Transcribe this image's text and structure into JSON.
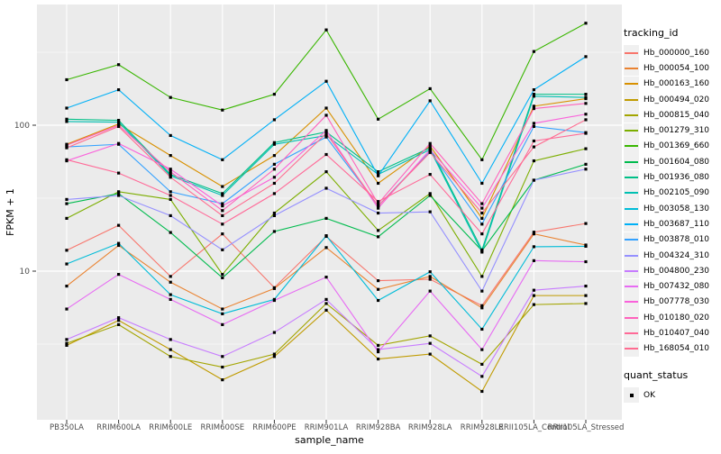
{
  "chart_data": {
    "type": "line",
    "title": "",
    "xlabel": "sample_name",
    "ylabel": "FPKM + 1",
    "y_scale": "log10",
    "y_ticks": [
      10,
      100
    ],
    "ylim": [
      1,
      590
    ],
    "grid": true,
    "panel_bg": "#EBEBEB",
    "gridline_color": "#FFFFFF",
    "tick_label_color": "#4D4D4D",
    "point_marker": "black-square",
    "categories": [
      "PB350LA",
      "RRIM600LA",
      "RRIM600LE",
      "RRIM600SE",
      "RRIM600PE",
      "RRIM901LA",
      "RRIM928BA",
      "RRIM928LA",
      "RRIM928LE",
      "RRII105LA_Control",
      "RRII105LA_Stressed"
    ],
    "series": [
      {
        "name": "Hb_000000_160",
        "color": "#F8766D",
        "values": [
          13.9,
          20.6,
          9.2,
          18,
          7.7,
          17.3,
          8.6,
          8.8,
          5.8,
          18.5,
          21.2
        ]
      },
      {
        "name": "Hb_000054_100",
        "color": "#EA8331",
        "values": [
          7.9,
          15,
          8.4,
          5.5,
          7.6,
          14.5,
          7.5,
          9.2,
          5.6,
          18,
          15.1
        ]
      },
      {
        "name": "Hb_000163_160",
        "color": "#D89000",
        "values": [
          74,
          102,
          62,
          38,
          62,
          131,
          40,
          72,
          23,
          135,
          152
        ]
      },
      {
        "name": "Hb_000494_020",
        "color": "#C09B00",
        "values": [
          3.1,
          4.6,
          2.9,
          1.8,
          2.6,
          5.4,
          2.5,
          2.7,
          1.5,
          6.8,
          6.8
        ]
      },
      {
        "name": "Hb_000815_040",
        "color": "#A3A500",
        "values": [
          3.2,
          4.3,
          2.6,
          2.2,
          2.7,
          6.0,
          3.1,
          3.6,
          2.3,
          5.9,
          6.0
        ]
      },
      {
        "name": "Hb_001279_310",
        "color": "#7CAE00",
        "values": [
          23,
          35,
          31,
          9.5,
          25,
          48,
          19,
          34,
          9.2,
          57,
          69
        ]
      },
      {
        "name": "Hb_001369_660",
        "color": "#39B600",
        "values": [
          205,
          260,
          155,
          127,
          163,
          450,
          110,
          178,
          58,
          320,
          500
        ]
      },
      {
        "name": "Hb_001604_080",
        "color": "#00BB4E",
        "values": [
          29,
          34,
          18.4,
          9.0,
          18.7,
          23,
          17.2,
          33,
          13.8,
          42,
          54
        ]
      },
      {
        "name": "Hb_001936_080",
        "color": "#00C087",
        "values": [
          110,
          108,
          46,
          34,
          76,
          90,
          48,
          70,
          14,
          163,
          163
        ]
      },
      {
        "name": "Hb_002105_090",
        "color": "#00C0B2",
        "values": [
          106,
          105,
          45,
          33,
          74,
          85,
          46,
          68,
          13.5,
          158,
          155
        ]
      },
      {
        "name": "Hb_003058_130",
        "color": "#00BCD8",
        "values": [
          11.2,
          15.5,
          6.9,
          5.1,
          6.4,
          17.5,
          6.3,
          9.9,
          4.0,
          14.7,
          14.8
        ]
      },
      {
        "name": "Hb_003687_110",
        "color": "#00B0F6",
        "values": [
          131,
          175,
          85,
          58,
          109,
          200,
          45,
          147,
          40,
          175,
          295
        ]
      },
      {
        "name": "Hb_003878_010",
        "color": "#35A2FF",
        "values": [
          71,
          74,
          35,
          29,
          54,
          83,
          28,
          66,
          21,
          98,
          89
        ]
      },
      {
        "name": "Hb_004324_310",
        "color": "#9590FF",
        "values": [
          31,
          33,
          24,
          14,
          24,
          37,
          25,
          25.5,
          7.3,
          42,
          50
        ]
      },
      {
        "name": "Hb_004800_230",
        "color": "#C77CFF",
        "values": [
          3.4,
          4.8,
          3.4,
          2.6,
          3.8,
          6.4,
          2.9,
          3.2,
          1.9,
          7.4,
          7.9
        ]
      },
      {
        "name": "Hb_007432_080",
        "color": "#E76BF3",
        "values": [
          5.5,
          9.5,
          6.4,
          4.3,
          6.3,
          9.1,
          2.8,
          7.3,
          2.9,
          11.8,
          11.6
        ]
      },
      {
        "name": "Hb_007778_030",
        "color": "#FA62DB",
        "values": [
          57,
          75,
          50,
          28,
          44,
          92,
          27,
          68,
          27,
          103,
          119
        ]
      },
      {
        "name": "Hb_010180_020",
        "color": "#FF62BC",
        "values": [
          73,
          100,
          48,
          26,
          50,
          117,
          29,
          75,
          29,
          130,
          141
        ]
      },
      {
        "name": "Hb_010407_040",
        "color": "#FF6A98",
        "values": [
          58,
          47,
          33,
          21,
          34,
          63,
          30,
          46,
          18,
          78,
          88
        ]
      },
      {
        "name": "Hb_168054_010",
        "color": "#FF6C91",
        "values": [
          70,
          98,
          44,
          24,
          40,
          88,
          28,
          65,
          25,
          71,
          109
        ]
      }
    ],
    "legend": {
      "title": "tracking_id",
      "position": "right"
    },
    "quant_legend": {
      "title": "quant_status",
      "items": [
        {
          "label": "OK",
          "marker": "black-square"
        }
      ]
    }
  }
}
